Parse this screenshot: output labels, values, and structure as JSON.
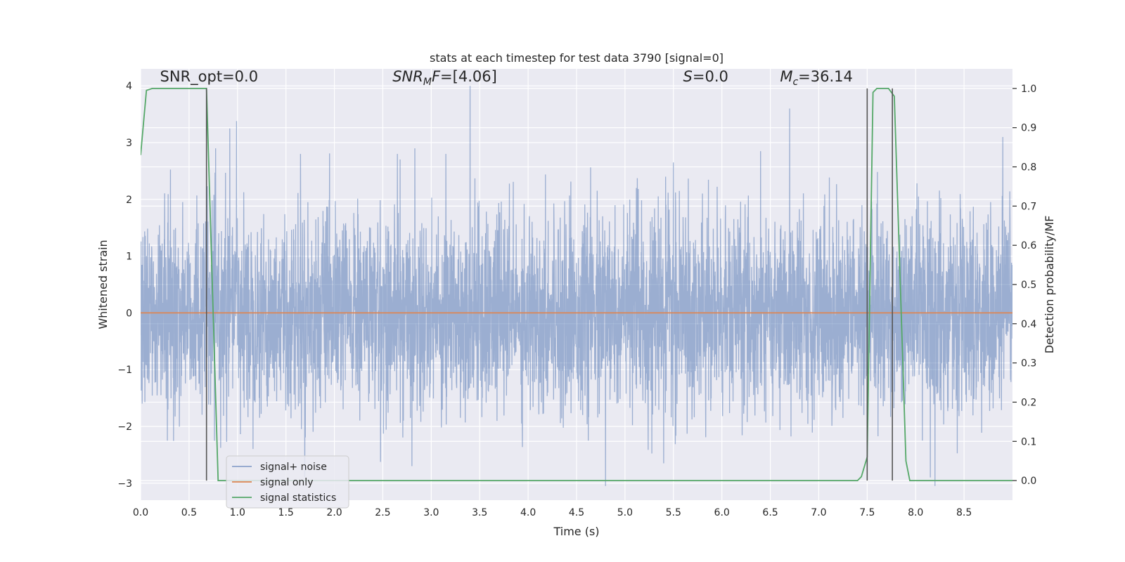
{
  "chart_data": {
    "type": "line",
    "title": "stats at each timestep for test data 3790 [signal=0]",
    "xlabel": "Time (s)",
    "ylabel": "Whitened strain",
    "y2label": "Detection probability/MF",
    "xlim": [
      0.0,
      9.0
    ],
    "ylim": [
      -3.3,
      4.3
    ],
    "y2lim": [
      -0.05,
      1.05
    ],
    "xticks": [
      0.0,
      0.5,
      1.0,
      1.5,
      2.0,
      2.5,
      3.0,
      3.5,
      4.0,
      4.5,
      5.0,
      5.5,
      6.0,
      6.5,
      7.0,
      7.5,
      8.0,
      8.5
    ],
    "yticks": [
      -3,
      -2,
      -1,
      0,
      1,
      2,
      3,
      4
    ],
    "y2ticks": [
      0.0,
      0.1,
      0.2,
      0.3,
      0.4,
      0.5,
      0.6,
      0.7,
      0.8,
      0.9,
      1.0
    ],
    "grid": true,
    "legend": "lower-left",
    "annotations": [
      {
        "x": 0.2,
        "y": 4.1,
        "text": "SNR_opt=0.0"
      },
      {
        "x": 2.6,
        "y": 4.1,
        "text": "SNR",
        "sub": "M",
        "suffix": "F=[4.06]"
      },
      {
        "x": 5.6,
        "y": 4.1,
        "text": "S",
        "suffix": "=0.0"
      },
      {
        "x": 6.6,
        "y": 4.1,
        "text": "M",
        "sub": "c",
        "suffix": "=36.14"
      }
    ],
    "series": [
      {
        "name": "signal+ noise",
        "color": "#4c72b0",
        "axis": "left",
        "style": "noise",
        "n_samples": 4500,
        "sigma": 0.85,
        "peaks": [
          [
            0.92,
            3.25
          ],
          [
            0.99,
            3.38
          ],
          [
            3.4,
            4.0
          ],
          [
            6.7,
            3.6
          ],
          [
            1.65,
            2.8
          ],
          [
            2.65,
            2.8
          ],
          [
            3.15,
            2.8
          ],
          [
            5.5,
            2.65
          ],
          [
            6.4,
            2.85
          ],
          [
            8.9,
            3.1
          ],
          [
            4.8,
            -3.05
          ],
          [
            8.2,
            -3.05
          ],
          [
            2.8,
            -2.7
          ],
          [
            5.4,
            -2.65
          ]
        ]
      },
      {
        "name": "signal only",
        "color": "#dd8452",
        "axis": "left",
        "x": [
          0.0,
          9.0
        ],
        "y": [
          0.0,
          0.0
        ]
      },
      {
        "name": "signal statistics",
        "color": "#55a868",
        "axis": "right",
        "x": [
          0.0,
          0.06,
          0.12,
          0.3,
          0.5,
          0.66,
          0.68,
          0.8,
          0.85,
          3.0,
          6.0,
          7.4,
          7.44,
          7.5,
          7.56,
          7.6,
          7.66,
          7.72,
          7.78,
          7.9,
          7.94,
          8.0,
          9.0
        ],
        "y": [
          0.83,
          0.995,
          1.0,
          1.0,
          1.0,
          1.0,
          1.0,
          0.0,
          0.0,
          0.0,
          0.0,
          0.0,
          0.01,
          0.06,
          0.99,
          1.0,
          1.0,
          1.0,
          0.98,
          0.05,
          0.0,
          0.0,
          0.0
        ]
      }
    ],
    "vlines": [
      0.68,
      7.5,
      7.76
    ]
  }
}
